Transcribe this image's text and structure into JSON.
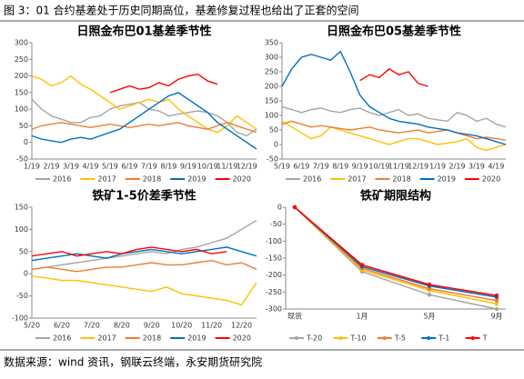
{
  "header": {
    "title": "图 3：01 合约基差处于历史同期高位，基差修复过程也给出了正套的空间"
  },
  "footer": {
    "source": "数据来源：wind 资讯，钢联云终端，永安期货研究院"
  },
  "chart_data": [
    {
      "type": "line",
      "title": "日照金布巴01基差季节性",
      "legend": "bottom",
      "categories": [
        "1/19",
        null,
        "2/19",
        null,
        "3/19",
        null,
        "4/19",
        null,
        "5/19",
        null,
        "6/19",
        null,
        "7/19",
        null,
        "8/19",
        null,
        "9/19",
        null,
        "10/19",
        null,
        "11/19",
        null,
        "12/19",
        null
      ],
      "ylim": [
        -50,
        300
      ],
      "yticks": [
        -50,
        0,
        50,
        100,
        150,
        200,
        250,
        300
      ],
      "series": [
        {
          "name": "2016",
          "color": "#a5a5a5",
          "values": [
            130,
            100,
            80,
            70,
            60,
            60,
            75,
            80,
            100,
            110,
            115,
            120,
            100,
            95,
            80,
            85,
            90,
            95,
            90,
            80,
            60,
            30,
            20,
            40
          ]
        },
        {
          "name": "2017",
          "color": "#ffc000",
          "values": [
            200,
            190,
            170,
            180,
            200,
            175,
            160,
            140,
            120,
            100,
            110,
            120,
            130,
            120,
            130,
            100,
            80,
            60,
            40,
            30,
            50,
            80,
            60,
            40
          ]
        },
        {
          "name": "2018",
          "color": "#ed7d31",
          "values": [
            40,
            50,
            55,
            60,
            55,
            50,
            45,
            50,
            55,
            50,
            45,
            50,
            55,
            50,
            55,
            60,
            50,
            45,
            40,
            50,
            60,
            50,
            40,
            30
          ]
        },
        {
          "name": "2019",
          "color": "#0070c0",
          "values": [
            20,
            10,
            5,
            0,
            10,
            15,
            10,
            20,
            30,
            40,
            60,
            80,
            100,
            120,
            140,
            150,
            130,
            110,
            90,
            60,
            40,
            20,
            0,
            -20
          ]
        },
        {
          "name": "2020",
          "color": "#ff0000",
          "values": [
            null,
            null,
            null,
            null,
            null,
            null,
            null,
            null,
            150,
            160,
            170,
            160,
            165,
            180,
            170,
            190,
            200,
            205,
            185,
            175,
            null,
            null,
            null,
            null
          ]
        }
      ]
    },
    {
      "type": "line",
      "title": "日照金布巴05基差季节性",
      "legend": "bottom",
      "categories": [
        "5/19",
        null,
        "6/19",
        null,
        "7/19",
        null,
        "8/19",
        null,
        "9/19",
        null,
        "10/19",
        null,
        "11/19",
        null,
        "12/19",
        null,
        "1/19",
        null,
        "2/19",
        null,
        "3/19",
        null,
        "4/19",
        null
      ],
      "ylim": [
        -50,
        350
      ],
      "yticks": [
        -50,
        0,
        50,
        100,
        150,
        200,
        250,
        300,
        350
      ],
      "series": [
        {
          "name": "2016",
          "color": "#a5a5a5",
          "values": [
            130,
            120,
            110,
            120,
            125,
            115,
            110,
            120,
            125,
            110,
            100,
            110,
            120,
            100,
            105,
            90,
            85,
            80,
            110,
            100,
            80,
            90,
            70,
            60
          ]
        },
        {
          "name": "2017",
          "color": "#ffc000",
          "values": [
            80,
            60,
            40,
            20,
            30,
            60,
            50,
            40,
            30,
            20,
            10,
            0,
            10,
            20,
            20,
            10,
            0,
            5,
            10,
            20,
            -10,
            -20,
            -10,
            0
          ]
        },
        {
          "name": "2018",
          "color": "#ed7d31",
          "values": [
            70,
            80,
            70,
            60,
            65,
            60,
            55,
            50,
            55,
            60,
            50,
            45,
            40,
            45,
            50,
            40,
            45,
            50,
            40,
            30,
            20,
            25,
            20,
            15
          ]
        },
        {
          "name": "2019",
          "color": "#0070c0",
          "values": [
            200,
            260,
            300,
            310,
            300,
            290,
            320,
            250,
            170,
            130,
            110,
            90,
            80,
            75,
            70,
            60,
            55,
            50,
            40,
            35,
            30,
            20,
            10,
            0
          ]
        },
        {
          "name": "2020",
          "color": "#ff0000",
          "values": [
            null,
            null,
            null,
            null,
            null,
            null,
            null,
            null,
            220,
            240,
            230,
            260,
            240,
            250,
            210,
            200,
            null,
            null,
            null,
            null,
            null,
            null,
            null,
            null
          ]
        }
      ]
    },
    {
      "type": "line",
      "title": "铁矿1-5价差季节性",
      "legend": "bottom",
      "categories": [
        "5/20",
        null,
        "6/20",
        null,
        "7/20",
        null,
        "8/20",
        null,
        "9/20",
        null,
        "10/20",
        null,
        "11/20",
        null,
        "12/20",
        null
      ],
      "ylim": [
        -100,
        150
      ],
      "yticks": [
        -100,
        -50,
        0,
        50,
        100,
        150
      ],
      "series": [
        {
          "name": "2016",
          "color": "#a5a5a5",
          "values": [
            10,
            15,
            20,
            25,
            30,
            35,
            40,
            45,
            50,
            45,
            55,
            60,
            70,
            80,
            100,
            120
          ]
        },
        {
          "name": "2017",
          "color": "#ffc000",
          "values": [
            -5,
            -10,
            -15,
            -15,
            -20,
            -25,
            -30,
            -35,
            -40,
            -30,
            -45,
            -50,
            -55,
            -60,
            -70,
            -20
          ]
        },
        {
          "name": "2018",
          "color": "#ed7d31",
          "values": [
            10,
            15,
            10,
            5,
            10,
            15,
            15,
            20,
            25,
            20,
            20,
            25,
            30,
            20,
            25,
            10
          ]
        },
        {
          "name": "2019",
          "color": "#0070c0",
          "values": [
            30,
            35,
            40,
            45,
            40,
            35,
            45,
            50,
            55,
            50,
            45,
            50,
            55,
            60,
            50,
            40
          ]
        },
        {
          "name": "2020",
          "color": "#ff0000",
          "values": [
            40,
            45,
            50,
            40,
            45,
            50,
            45,
            55,
            60,
            55,
            50,
            55,
            45,
            50,
            null,
            null
          ]
        }
      ]
    },
    {
      "type": "line",
      "title": "铁矿期限结构",
      "legend": "bottom",
      "markers": true,
      "categories": [
        "现货",
        "1月",
        "5月",
        "9月"
      ],
      "ylim": [
        -300,
        0
      ],
      "yticks": [
        -300,
        -250,
        -200,
        -150,
        -100,
        -50,
        0
      ],
      "series": [
        {
          "name": "T-20",
          "color": "#a5a5a5",
          "values": [
            0,
            -190,
            -258,
            -300
          ]
        },
        {
          "name": "T-10",
          "color": "#ffc000",
          "values": [
            0,
            -185,
            -245,
            -285
          ]
        },
        {
          "name": "T-5",
          "color": "#ed7d31",
          "values": [
            0,
            -180,
            -240,
            -275
          ]
        },
        {
          "name": "T-1",
          "color": "#0070c0",
          "values": [
            0,
            -175,
            -232,
            -265
          ]
        },
        {
          "name": "T",
          "color": "#ff0000",
          "values": [
            0,
            -170,
            -228,
            -260
          ]
        }
      ]
    }
  ]
}
